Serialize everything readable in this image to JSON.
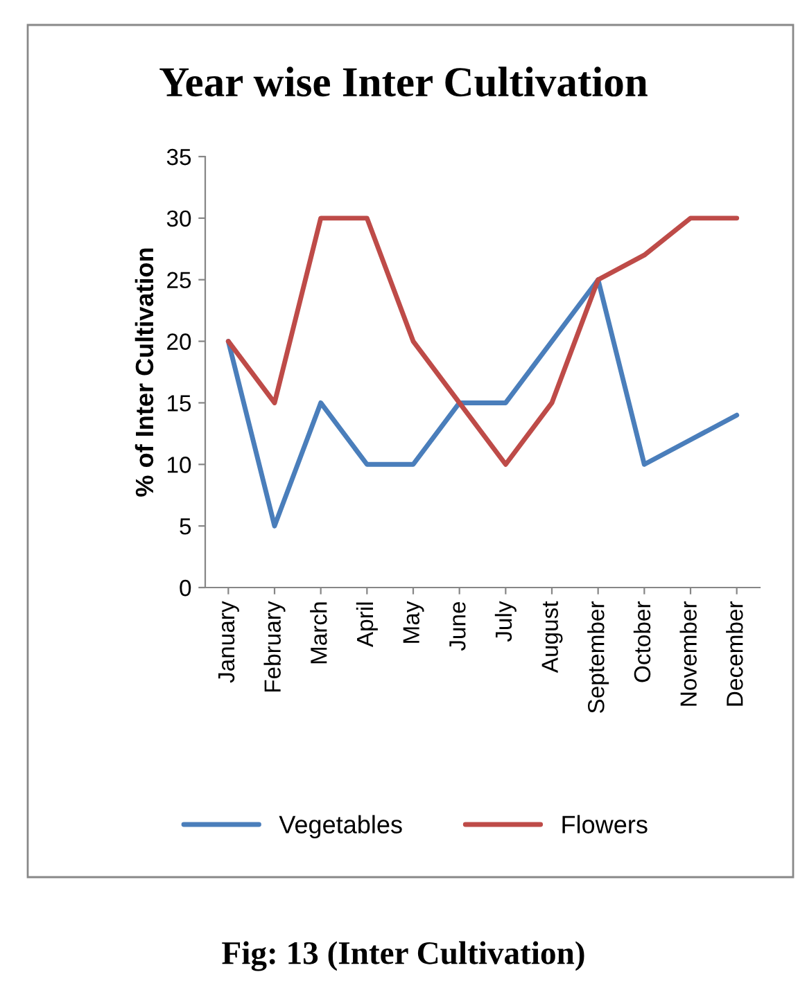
{
  "chart_data": {
    "type": "line",
    "title": "Year wise Inter Cultivation",
    "ylabel": "% of Inter Cultivation",
    "categories": [
      "January",
      "February",
      "March",
      "April",
      "May",
      "June",
      "July",
      "August",
      "September",
      "October",
      "November",
      "December"
    ],
    "series": [
      {
        "name": "Vegetables",
        "color": "#4a7ebb",
        "values": [
          20,
          5,
          15,
          10,
          10,
          15,
          15,
          20,
          25,
          10,
          12,
          14
        ]
      },
      {
        "name": "Flowers",
        "color": "#be4b48",
        "values": [
          20,
          15,
          30,
          30,
          20,
          15,
          10,
          15,
          25,
          27,
          30,
          30
        ]
      }
    ],
    "ylim": [
      0,
      35
    ],
    "yticks": [
      0,
      5,
      10,
      15,
      20,
      25,
      30,
      35
    ],
    "grid": false,
    "legend": "bottom",
    "marker": "none",
    "line_style": "solid",
    "annotations": [
      "Fig: 13 (Inter Cultivation)"
    ]
  }
}
